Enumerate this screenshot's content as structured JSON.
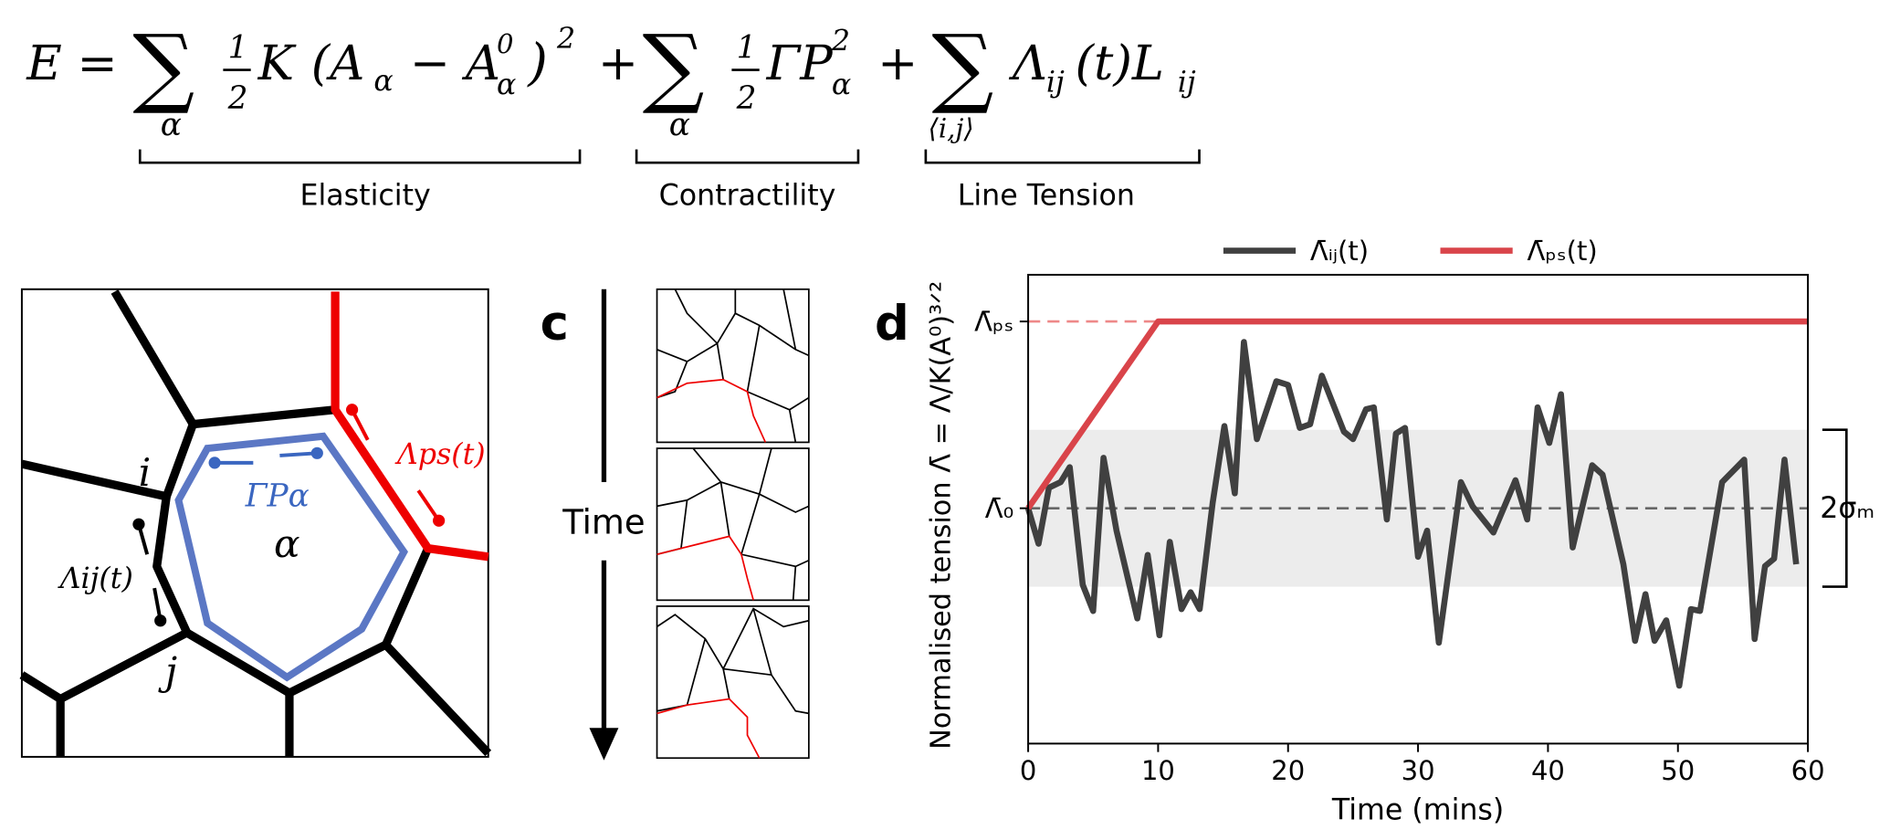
{
  "equation": {
    "parts": [
      "E =",
      "∑",
      "α",
      "1",
      "2",
      "K",
      "(A",
      "α",
      "− A",
      "0",
      "α",
      ")",
      "2",
      "+",
      "∑",
      "α",
      "1",
      "2",
      "ΓP",
      "2",
      "α",
      "+",
      "∑",
      "⟨i,j⟩",
      "Λ",
      "ij",
      "(t)L",
      "ij"
    ],
    "braces": [
      "Elasticity",
      "Contractility",
      "Line Tension"
    ]
  },
  "diagram": {
    "labels": [
      "i",
      "j",
      "α",
      "ΓPα",
      "Λps(t)",
      "Λij(t)"
    ]
  },
  "panel_c": {
    "label": "c",
    "axis": "Time"
  },
  "chart_data": {
    "type": "line",
    "panel": "d",
    "xlabel": "Time (mins)",
    "ylabel": "Normalised tension Λ̄ = Λ/K(A⁰)³ᐟ²",
    "xlim": [
      0,
      60
    ],
    "xticks": [
      0,
      10,
      20,
      30,
      40,
      50,
      60
    ],
    "ylim": [
      -1.26,
      1.25
    ],
    "yticks": [
      {
        "value": 0,
        "label": "Λ̄₀"
      },
      {
        "value": 1,
        "label": "Λ̄ₚₛ"
      }
    ],
    "band": {
      "center": 0,
      "halfwidth": 0.42,
      "label": "2σₘ",
      "color": "#ececec"
    },
    "legend": "top",
    "series": [
      {
        "name": "Λ̄ᵢⱼ(t)",
        "color": "#404040",
        "x": [
          0,
          0.8,
          1.6,
          2.5,
          3.2,
          4.2,
          5,
          5.8,
          6.8,
          8.4,
          9.2,
          10.1,
          10.9,
          11.8,
          12.5,
          13.2,
          14.2,
          15.1,
          15.9,
          16.6,
          17.6,
          19.1,
          20,
          20.9,
          21.7,
          22.6,
          24.3,
          25,
          26,
          26.6,
          27.6,
          28.3,
          29,
          30,
          30.7,
          31.6,
          33.3,
          34.2,
          35.8,
          37.5,
          38.4,
          39.2,
          40.1,
          41,
          41.9,
          43.4,
          44.2,
          45.8,
          46.7,
          47.5,
          48.2,
          49.1,
          50.1,
          51,
          51.7,
          53.4,
          55.1,
          55.9,
          56.7,
          57.4,
          58.2,
          59.1
        ],
        "values": [
          0,
          -0.19,
          0.11,
          0.14,
          0.22,
          -0.41,
          -0.55,
          0.27,
          -0.12,
          -0.59,
          -0.25,
          -0.68,
          -0.18,
          -0.54,
          -0.45,
          -0.54,
          0.03,
          0.44,
          0.08,
          0.89,
          0.37,
          0.68,
          0.66,
          0.43,
          0.45,
          0.71,
          0.41,
          0.37,
          0.53,
          0.54,
          -0.06,
          0.4,
          0.43,
          -0.26,
          -0.12,
          -0.72,
          0.14,
          0.01,
          -0.13,
          0.15,
          -0.06,
          0.54,
          0.35,
          0.61,
          -0.21,
          0.23,
          0.18,
          -0.3,
          -0.71,
          -0.46,
          -0.71,
          -0.6,
          -0.95,
          -0.54,
          -0.55,
          0.14,
          0.26,
          -0.7,
          -0.31,
          -0.27,
          0.26,
          -0.3
        ]
      },
      {
        "name": "Λ̄ₚₛ(t)",
        "color": "#d9444a",
        "x": [
          0,
          10,
          60
        ],
        "values": [
          0,
          1,
          1
        ]
      }
    ]
  }
}
